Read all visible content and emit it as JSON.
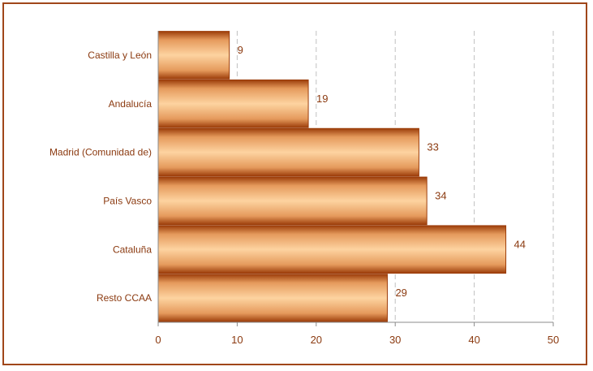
{
  "chart_data": {
    "type": "bar",
    "orientation": "horizontal",
    "categories": [
      "Castilla y León",
      "Andalucía",
      "Madrid (Comunidad de)",
      "País Vasco",
      "Cataluña",
      "Resto CCAA"
    ],
    "values": [
      9,
      19,
      33,
      34,
      44,
      29
    ],
    "value_labels": [
      "9",
      "19",
      "33",
      "34",
      "44",
      "29"
    ],
    "xlim": [
      0,
      50
    ],
    "xticks": [
      "0",
      "10",
      "20",
      "30",
      "40",
      "50"
    ],
    "title": "",
    "xlabel": "",
    "ylabel": "",
    "grid": "vertical dashed",
    "legend": "none",
    "colors": {
      "bar_light": "#fcc98f",
      "bar_dark": "#9c3d0a",
      "frame": "#a0471a",
      "text": "#8b3a10",
      "grid": "#c0c0c0"
    }
  }
}
